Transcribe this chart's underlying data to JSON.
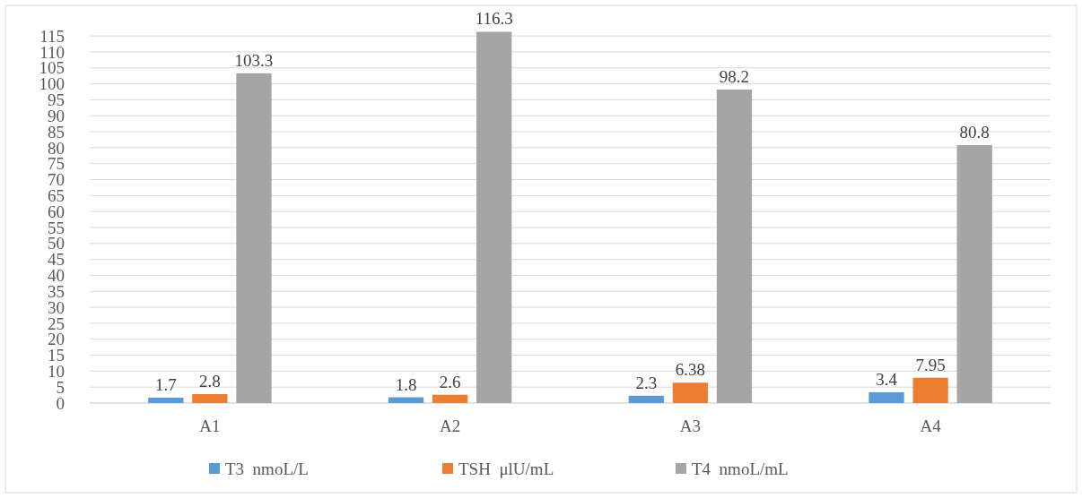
{
  "chart_data": {
    "type": "bar",
    "categories": [
      "A1",
      "A2",
      "A3",
      "A4"
    ],
    "series": [
      {
        "name": "T3  nmoL/L",
        "color": "#5b9bd5",
        "values": [
          1.7,
          1.8,
          2.3,
          3.4
        ]
      },
      {
        "name": "TSH  μlU/mL",
        "color": "#ed7d31",
        "values": [
          2.8,
          2.6,
          6.38,
          7.95
        ]
      },
      {
        "name": "T4  nmoL/mL",
        "color": "#a5a5a5",
        "values": [
          103.3,
          116.3,
          98.2,
          80.8
        ]
      }
    ],
    "ylim": [
      0,
      117
    ],
    "yticks": [
      0,
      5,
      10,
      15,
      20,
      25,
      30,
      35,
      40,
      45,
      50,
      55,
      60,
      65,
      70,
      75,
      80,
      85,
      90,
      95,
      100,
      105,
      110,
      115
    ],
    "grid": "y",
    "legend": "bottom",
    "data_labels": true
  }
}
